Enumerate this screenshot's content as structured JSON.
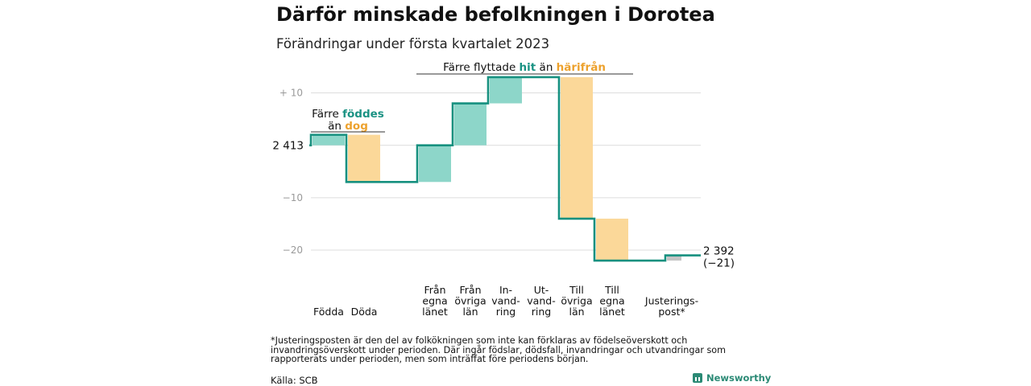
{
  "title": "Därför minskade befolkningen i Dorotea",
  "subtitle": "Förändringar under första kvartalet 2023",
  "chart_data": {
    "type": "waterfall",
    "start_label": "2 413",
    "end_label": "2 392",
    "end_change_label": "(−21)",
    "y_ticks": [
      {
        "value": 10,
        "label": "+ 10"
      },
      {
        "value": 0,
        "label": ""
      },
      {
        "value": -10,
        "label": "−10"
      },
      {
        "value": -20,
        "label": "−20"
      }
    ],
    "ylim": [
      -22,
      13
    ],
    "steps": [
      {
        "label_lines": [
          "Födda"
        ],
        "change": 2
      },
      {
        "label_lines": [
          "Döda"
        ],
        "change": -9
      },
      {
        "label_lines": [],
        "change": 0
      },
      {
        "label_lines": [
          "Från",
          "egna",
          "länet"
        ],
        "change": 7
      },
      {
        "label_lines": [
          "Från",
          "övriga",
          "län"
        ],
        "change": 8
      },
      {
        "label_lines": [
          "In-",
          "vand-",
          "ring"
        ],
        "change": 5
      },
      {
        "label_lines": [
          "Ut-",
          "vand-",
          "ring"
        ],
        "change": 0
      },
      {
        "label_lines": [
          "Till",
          "övriga",
          "län"
        ],
        "change": -27
      },
      {
        "label_lines": [
          "Till",
          "egna",
          "länet"
        ],
        "change": -8
      },
      {
        "label_lines": [],
        "change": 0
      },
      {
        "label_lines": [
          "Justerings-",
          "post*"
        ],
        "change": 1
      }
    ],
    "annotations": [
      {
        "group": "natural",
        "lines": [
          [
            {
              "text": "Färre ",
              "role": "plain"
            },
            {
              "text": "föddes",
              "role": "in"
            }
          ],
          [
            {
              "text": "än ",
              "role": "plain"
            },
            {
              "text": "dog",
              "role": "out"
            }
          ]
        ]
      },
      {
        "group": "migration",
        "lines": [
          [
            {
              "text": "Färre flyttade ",
              "role": "plain"
            },
            {
              "text": "hit",
              "role": "in"
            },
            {
              "text": " än ",
              "role": "plain"
            },
            {
              "text": "härifrån",
              "role": "out"
            }
          ]
        ]
      }
    ]
  },
  "colors": {
    "increase": "#8dd6c9",
    "decrease": "#fbd899",
    "adjustment": "#c4c4c4",
    "line": "#16907f",
    "in_text": "#1a9283",
    "out_text": "#eda22e",
    "grid": "#dddddd",
    "tick_text": "#9a9a9a"
  },
  "footnote": "*Justeringsposten är den del av folkökningen som inte kan förklaras av födelseöverskott och invandringsöverskott under perioden. Där ingår födslar, dödsfall, invandringar och utvandringar som rapporterats under perioden, men som inträffat före periodens början.",
  "source": "Källa: SCB",
  "brand": "Newsworthy"
}
